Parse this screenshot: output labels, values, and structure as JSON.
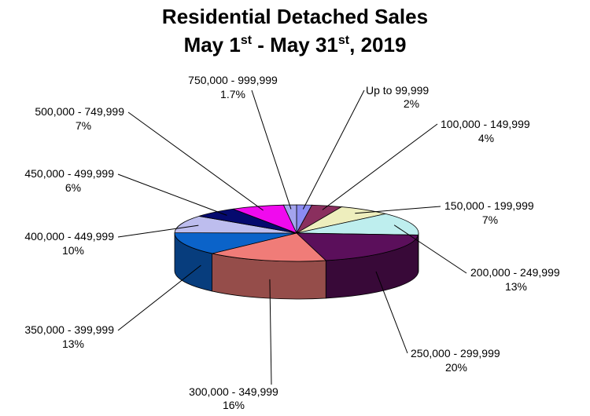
{
  "chart_data": {
    "type": "pie",
    "title_line1": "Residential Detached Sales",
    "title_line2": {
      "part1": "May 1",
      "sup1": "st",
      "part2": " - May 31",
      "sup2": "st",
      "part3": ", 2019"
    },
    "slices": [
      {
        "label": "Up to 99,999",
        "value": 2,
        "value_text": "2%",
        "color": "#8B8BF2"
      },
      {
        "label": "100,000 - 149,999",
        "value": 4,
        "value_text": "4%",
        "color": "#8A2F5E"
      },
      {
        "label": "150,000 - 199,999",
        "value": 7,
        "value_text": "7%",
        "color": "#EEEEBD"
      },
      {
        "label": "200,000 - 249,999",
        "value": 13,
        "value_text": "13%",
        "color": "#BEEEEE"
      },
      {
        "label": "250,000 - 299,999",
        "value": 20,
        "value_text": "20%",
        "color": "#5B0F5B"
      },
      {
        "label": "300,000 - 349,999",
        "value": 16,
        "value_text": "16%",
        "color": "#F07C78"
      },
      {
        "label": "350,000 - 399,999",
        "value": 13,
        "value_text": "13%",
        "color": "#0B63C9"
      },
      {
        "label": "400,000 - 449,999",
        "value": 10,
        "value_text": "10%",
        "color": "#BDBDEE"
      },
      {
        "label": "450,000 - 499,999",
        "value": 6,
        "value_text": "6%",
        "color": "#050A6E"
      },
      {
        "label": "500,000 - 749,999",
        "value": 7,
        "value_text": "7%",
        "color": "#F00AEE"
      },
      {
        "label": "750,000 - 999,999",
        "value": 1.7,
        "value_text": "1.7%",
        "color": "#A4A4EE"
      }
    ]
  }
}
